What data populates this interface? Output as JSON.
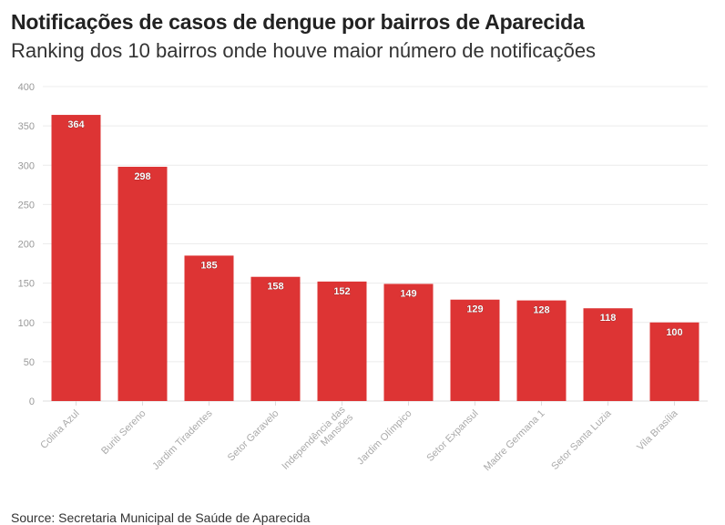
{
  "title": "Notificações de casos de dengue por bairros de Aparecida",
  "subtitle": "Ranking dos 10 bairros onde houve maior número de notificações",
  "source": "Source: Secretaria Municipal de Saúde de Aparecida",
  "chart_data": {
    "type": "bar",
    "categories": [
      "Colina Azul",
      "Buriti Sereno",
      "Jardim Tiradentes",
      "Setor Garavelo",
      "Independência das Mansões",
      "Jardim Olímpico",
      "Setor Expansul",
      "Madre Germana 1",
      "Setor Santa Luzia",
      "Vila Brasília"
    ],
    "values": [
      364,
      298,
      185,
      158,
      152,
      149,
      129,
      128,
      118,
      100
    ],
    "ylim": [
      0,
      400
    ],
    "yticks": [
      0,
      50,
      100,
      150,
      200,
      250,
      300,
      350,
      400
    ],
    "grid": true,
    "bar_color": "#dd3434",
    "xlabel": "",
    "ylabel": ""
  }
}
